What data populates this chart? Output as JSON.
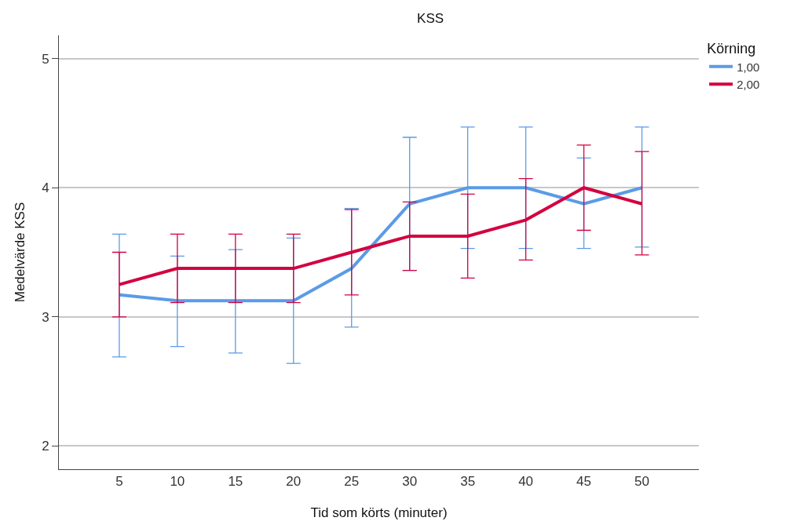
{
  "chart_data": {
    "type": "line",
    "title": "KSS",
    "xlabel": "Tid som körts (minuter)",
    "ylabel": "Medelvärde KSS",
    "legend_title": "Körning",
    "categories": [
      "5",
      "10",
      "15",
      "20",
      "25",
      "30",
      "35",
      "40",
      "45",
      "50"
    ],
    "series": [
      {
        "name": "1,00",
        "color": "#5b9be6",
        "values": [
          3.17,
          3.125,
          3.125,
          3.125,
          3.375,
          3.875,
          4,
          4,
          3.875,
          4
        ],
        "errors": [
          [
            2.69,
            3.64
          ],
          [
            2.77,
            3.47
          ],
          [
            2.72,
            3.52
          ],
          [
            2.64,
            3.61
          ],
          [
            2.92,
            3.84
          ],
          [
            3.36,
            4.39
          ],
          [
            3.53,
            4.47
          ],
          [
            3.53,
            4.47
          ],
          [
            3.53,
            4.23
          ],
          [
            3.54,
            4.47
          ]
        ]
      },
      {
        "name": "2,00",
        "color": "#d3003f",
        "values": [
          3.25,
          3.375,
          3.375,
          3.375,
          3.5,
          3.625,
          3.625,
          3.75,
          4,
          3.875
        ],
        "errors": [
          [
            3.0,
            3.5
          ],
          [
            3.11,
            3.64
          ],
          [
            3.11,
            3.64
          ],
          [
            3.11,
            3.64
          ],
          [
            3.17,
            3.83
          ],
          [
            3.36,
            3.89
          ],
          [
            3.3,
            3.95
          ],
          [
            3.44,
            4.07
          ],
          [
            3.67,
            4.33
          ],
          [
            3.48,
            4.28
          ]
        ]
      }
    ],
    "ylim": [
      1.82,
      5.18
    ],
    "yticks": [
      2,
      3,
      4,
      5
    ],
    "grid": "y",
    "legend": "top right",
    "marker": "none",
    "line_style": "solid"
  }
}
